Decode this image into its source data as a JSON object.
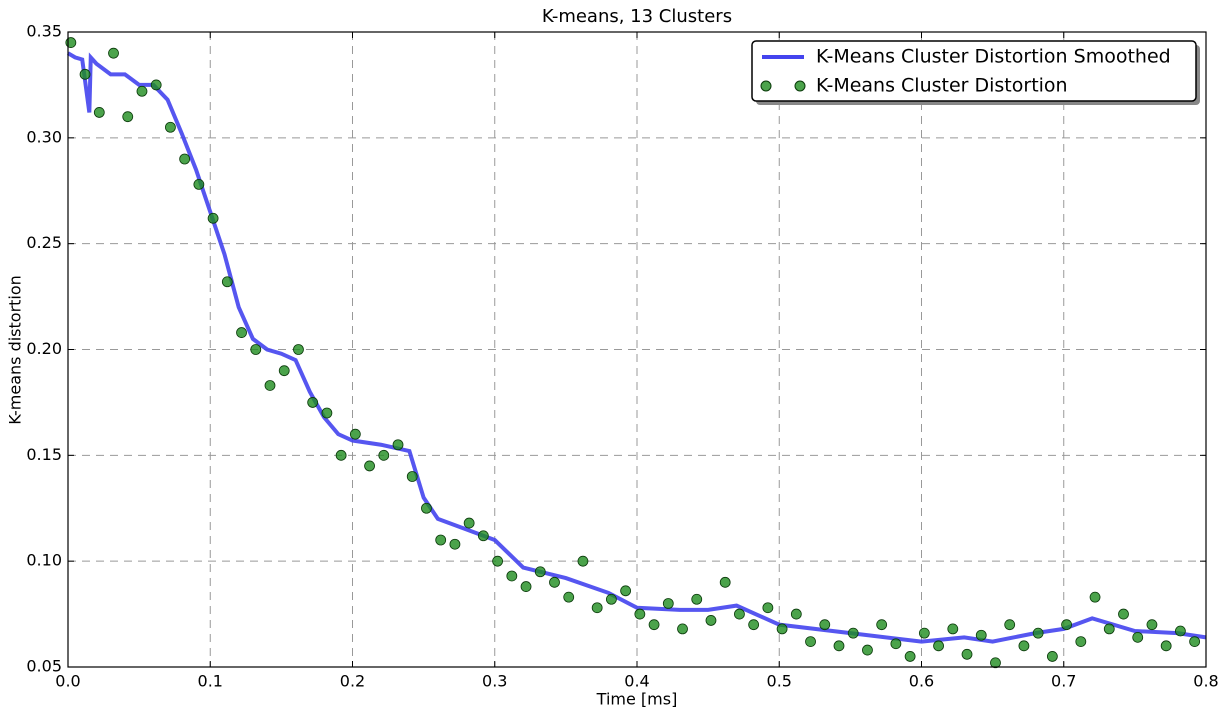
{
  "chart_data": {
    "type": "line",
    "title": "K-means, 13 Clusters",
    "x_label": "Time [ms]",
    "y_label": "K-means distortion",
    "xlim": [
      0,
      0.8
    ],
    "ylim": [
      0.05,
      0.35
    ],
    "xticks": [
      {
        "value": 0,
        "label": "0.0"
      },
      0.1,
      0.2,
      0.3,
      0.4,
      0.5,
      0.6,
      0.7,
      0.8
    ],
    "yticks": [
      0.05,
      {
        "value": 0.1,
        "label": "0.10"
      },
      0.15,
      {
        "value": 0.2,
        "label": "0.20"
      },
      0.25,
      {
        "value": 0.3,
        "label": "0.30"
      },
      0.35
    ],
    "grid": true,
    "legend": "upper right",
    "series": [
      {
        "name": "K-Means Cluster Distortion Smoothed",
        "style": "line",
        "color": "#4444ee",
        "x": [
          0,
          0.005,
          0.01,
          0.015,
          0.016,
          0.02,
          0.03,
          0.04,
          0.05,
          0.06,
          0.07,
          0.08,
          0.09,
          0.1,
          0.11,
          0.12,
          0.13,
          0.14,
          0.15,
          0.16,
          0.17,
          0.18,
          0.19,
          0.2,
          0.22,
          0.24,
          0.25,
          0.26,
          0.28,
          0.3,
          0.32,
          0.35,
          0.38,
          0.4,
          0.43,
          0.45,
          0.47,
          0.5,
          0.55,
          0.6,
          0.63,
          0.65,
          0.68,
          0.7,
          0.72,
          0.75,
          0.78,
          0.8
        ],
        "values": [
          0.34,
          0.338,
          0.337,
          0.312,
          0.338,
          0.335,
          0.33,
          0.33,
          0.325,
          0.325,
          0.318,
          0.302,
          0.285,
          0.265,
          0.245,
          0.22,
          0.205,
          0.2,
          0.198,
          0.195,
          0.18,
          0.168,
          0.16,
          0.157,
          0.155,
          0.152,
          0.13,
          0.12,
          0.115,
          0.11,
          0.097,
          0.092,
          0.085,
          0.078,
          0.077,
          0.077,
          0.079,
          0.07,
          0.066,
          0.062,
          0.064,
          0.062,
          0.066,
          0.068,
          0.073,
          0.067,
          0.066,
          0.064
        ]
      },
      {
        "name": "K-Means Cluster Distortion",
        "style": "markers",
        "color": "#1e8c1e",
        "x": [
          0.002,
          0.012,
          0.022,
          0.032,
          0.042,
          0.052,
          0.062,
          0.072,
          0.082,
          0.092,
          0.102,
          0.112,
          0.122,
          0.132,
          0.142,
          0.152,
          0.162,
          0.172,
          0.182,
          0.192,
          0.202,
          0.212,
          0.222,
          0.232,
          0.242,
          0.252,
          0.262,
          0.272,
          0.282,
          0.292,
          0.302,
          0.312,
          0.322,
          0.332,
          0.342,
          0.352,
          0.362,
          0.372,
          0.382,
          0.392,
          0.402,
          0.412,
          0.422,
          0.432,
          0.442,
          0.452,
          0.462,
          0.472,
          0.482,
          0.492,
          0.502,
          0.512,
          0.522,
          0.532,
          0.542,
          0.552,
          0.562,
          0.572,
          0.582,
          0.592,
          0.602,
          0.612,
          0.622,
          0.632,
          0.642,
          0.652,
          0.662,
          0.672,
          0.682,
          0.692,
          0.702,
          0.712,
          0.722,
          0.732,
          0.742,
          0.752,
          0.762,
          0.772,
          0.782,
          0.792
        ],
        "values": [
          0.345,
          0.33,
          0.312,
          0.34,
          0.31,
          0.322,
          0.325,
          0.305,
          0.29,
          0.278,
          0.262,
          0.232,
          0.208,
          0.2,
          0.183,
          0.19,
          0.2,
          0.175,
          0.17,
          0.15,
          0.16,
          0.145,
          0.15,
          0.155,
          0.14,
          0.125,
          0.11,
          0.108,
          0.118,
          0.112,
          0.1,
          0.093,
          0.088,
          0.095,
          0.09,
          0.083,
          0.1,
          0.078,
          0.082,
          0.086,
          0.075,
          0.07,
          0.08,
          0.068,
          0.082,
          0.072,
          0.09,
          0.075,
          0.07,
          0.078,
          0.068,
          0.075,
          0.062,
          0.07,
          0.06,
          0.066,
          0.058,
          0.07,
          0.061,
          0.055,
          0.066,
          0.06,
          0.068,
          0.056,
          0.065,
          0.052,
          0.07,
          0.06,
          0.066,
          0.055,
          0.07,
          0.062,
          0.083,
          0.068,
          0.075,
          0.064,
          0.07,
          0.06,
          0.067,
          0.062
        ]
      }
    ]
  }
}
